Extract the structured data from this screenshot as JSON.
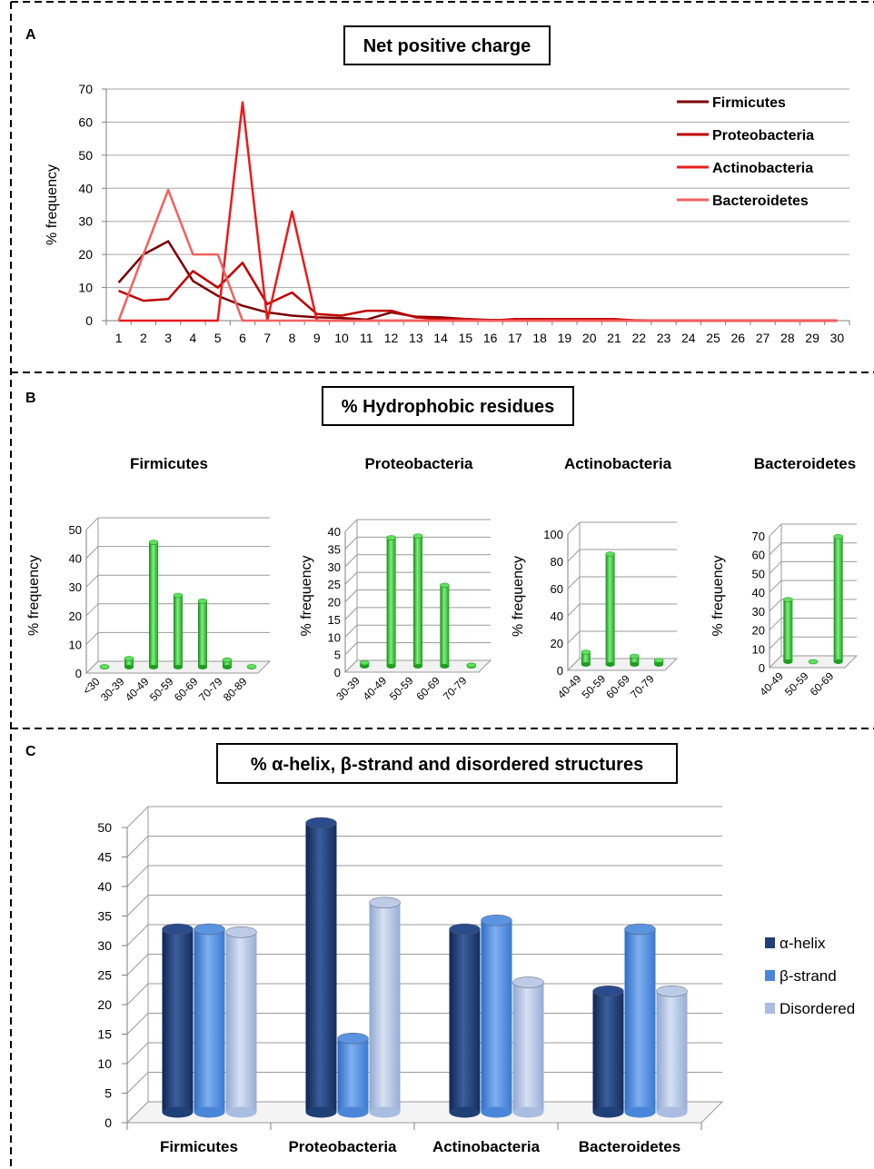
{
  "panels": [
    {
      "letter": "A",
      "title": "Net positive charge"
    },
    {
      "letter": "B",
      "title": "% Hydrophobic residues"
    },
    {
      "letter": "C",
      "title": "%  α-helix, β-strand and disordered structures"
    }
  ],
  "colors": {
    "firmicutes": "#7b0000",
    "proteobacteria": "#c00000",
    "actinobacteria": "#e81c1c",
    "bacteroidetes": "#f26060",
    "green_bar": "#33cc33",
    "helix": "#1f3f77",
    "strand": "#4a86d8",
    "disordered": "#a9bde0"
  },
  "chart_data": [
    {
      "type": "line",
      "title": "Net positive charge",
      "ylabel": "% frequency",
      "xlabel": "",
      "x": [
        1,
        2,
        3,
        4,
        5,
        6,
        7,
        8,
        9,
        10,
        11,
        12,
        13,
        14,
        15,
        16,
        17,
        18,
        19,
        20,
        21,
        22,
        23,
        24,
        25,
        26,
        27,
        28,
        29,
        30
      ],
      "ylim": [
        0,
        70
      ],
      "yticks": [
        0,
        10,
        20,
        30,
        40,
        50,
        60,
        70
      ],
      "grid": true,
      "legend": "top-right",
      "series": [
        {
          "name": "Firmicutes",
          "values": [
            11.5,
            20,
            24,
            12,
            7.5,
            4.5,
            2.5,
            1.5,
            1,
            0.8,
            0.3,
            2.5,
            1.2,
            1,
            0.5,
            0.2,
            0.2,
            0.2,
            0.2,
            0.1,
            0.1,
            0.1,
            0,
            0,
            0,
            0,
            0,
            0,
            0,
            0
          ]
        },
        {
          "name": "Proteobacteria",
          "values": [
            9,
            6,
            6.5,
            15,
            10,
            17.5,
            5,
            8.5,
            2,
            1.5,
            3,
            3,
            1,
            0.5,
            0.5,
            0,
            0.5,
            0.5,
            0.5,
            0.5,
            0.5,
            0,
            0,
            0,
            0,
            0,
            0,
            0,
            0,
            0
          ]
        },
        {
          "name": "Actinobacteria",
          "values": [
            0,
            0,
            0,
            0,
            0,
            66,
            0,
            33,
            0,
            0,
            0,
            0,
            0,
            0,
            0,
            0,
            0,
            0,
            0,
            0,
            0,
            0,
            0,
            0,
            0,
            0,
            0,
            0,
            0,
            0
          ]
        },
        {
          "name": "Bacteroidetes",
          "values": [
            0,
            20,
            39.5,
            20,
            20,
            0,
            0,
            0,
            0,
            0,
            0,
            0,
            0,
            0,
            0,
            0,
            0,
            0,
            0,
            0,
            0,
            0,
            0,
            0,
            0,
            0,
            0,
            0,
            0,
            0
          ]
        }
      ]
    },
    {
      "type": "bar",
      "title": "Firmicutes",
      "ylabel": "% frequency",
      "categories": [
        "<30",
        "30-39",
        "40-49",
        "50-59",
        "60-69",
        "70-79",
        "80-89"
      ],
      "values": [
        0.2,
        3,
        43.5,
        25,
        23,
        2.5,
        0.2
      ],
      "ylim": [
        0,
        50
      ],
      "yticks": [
        0,
        10,
        20,
        30,
        40,
        50
      ]
    },
    {
      "type": "bar",
      "title": "Proteobacteria",
      "ylabel": "% frequency",
      "categories": [
        "30-39",
        "40-49",
        "50-59",
        "60-69",
        "70-79"
      ],
      "values": [
        1,
        36.5,
        37,
        23,
        0.3
      ],
      "ylim": [
        0,
        40
      ],
      "yticks": [
        0,
        5,
        10,
        15,
        20,
        25,
        30,
        35,
        40
      ]
    },
    {
      "type": "bar",
      "title": "Actinobacteria",
      "ylabel": "% frequency",
      "categories": [
        "40-49",
        "50-59",
        "60-69",
        "70-79"
      ],
      "values": [
        9,
        81,
        6,
        3
      ],
      "ylim": [
        0,
        100
      ],
      "yticks": [
        0,
        20,
        40,
        60,
        80,
        100
      ]
    },
    {
      "type": "bar",
      "title": "Bacteroidetes",
      "ylabel": "% frequency",
      "categories": [
        "40-49",
        "50-59",
        "60-69"
      ],
      "values": [
        33,
        0,
        66.5
      ],
      "ylim": [
        0,
        70
      ],
      "yticks": [
        0,
        10,
        20,
        30,
        40,
        50,
        60,
        70
      ]
    },
    {
      "type": "bar",
      "title": "%  α-helix, β-strand and disordered structures",
      "categories": [
        "Firmicutes",
        "Proteobacteria",
        "Actinobacteria",
        "Bacteroidetes"
      ],
      "ylim": [
        0,
        50
      ],
      "yticks": [
        0,
        5,
        10,
        15,
        20,
        25,
        30,
        35,
        40,
        45,
        50
      ],
      "legend": "right",
      "series": [
        {
          "name": "α-helix",
          "values": [
            31,
            49,
            31,
            20.5
          ]
        },
        {
          "name": "β-strand",
          "values": [
            31,
            12.5,
            32.5,
            31
          ]
        },
        {
          "name": "Disordered",
          "values": [
            30.5,
            35.5,
            22,
            20.5
          ]
        }
      ]
    }
  ]
}
